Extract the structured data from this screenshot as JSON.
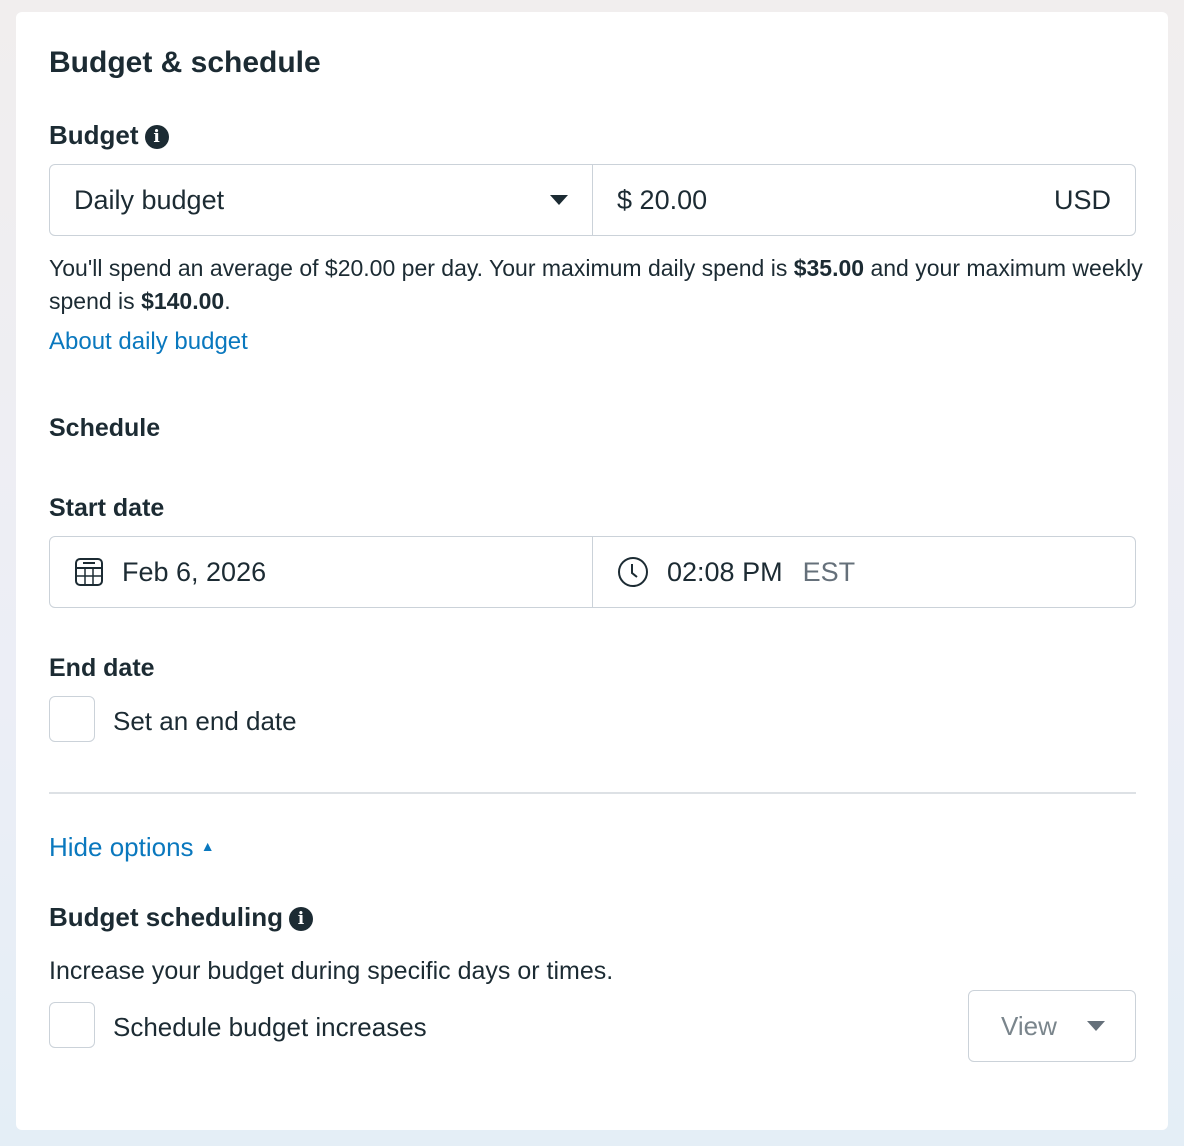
{
  "title": "Budget & schedule",
  "budget": {
    "label": "Budget",
    "type": "Daily budget",
    "currency_symbol": "$",
    "amount": "20.00",
    "currency": "USD",
    "summary_1": "You'll spend an average of $20.00 per day. Your maximum daily spend is ",
    "max_daily": "$35.00",
    "summary_2": " and your maximum weekly spend is ",
    "max_weekly": "$140.00",
    "summary_3": ".",
    "link": "About daily budget"
  },
  "schedule": {
    "label": "Schedule",
    "start_label": "Start date",
    "start_date": "Feb 6, 2026",
    "start_time": "02:08 PM",
    "timezone": "EST",
    "end_label": "End date",
    "end_checkbox": "Set an end date",
    "end_checked": false
  },
  "options": {
    "toggle": "Hide options",
    "scheduling_label": "Budget scheduling",
    "scheduling_desc": "Increase your budget during specific days or times.",
    "increase_checkbox": "Schedule budget increases",
    "increase_checked": false,
    "view_label": "View"
  },
  "colors": {
    "link": "#0a78be",
    "text": "#1c2b33",
    "border": "#cbd2d9"
  }
}
